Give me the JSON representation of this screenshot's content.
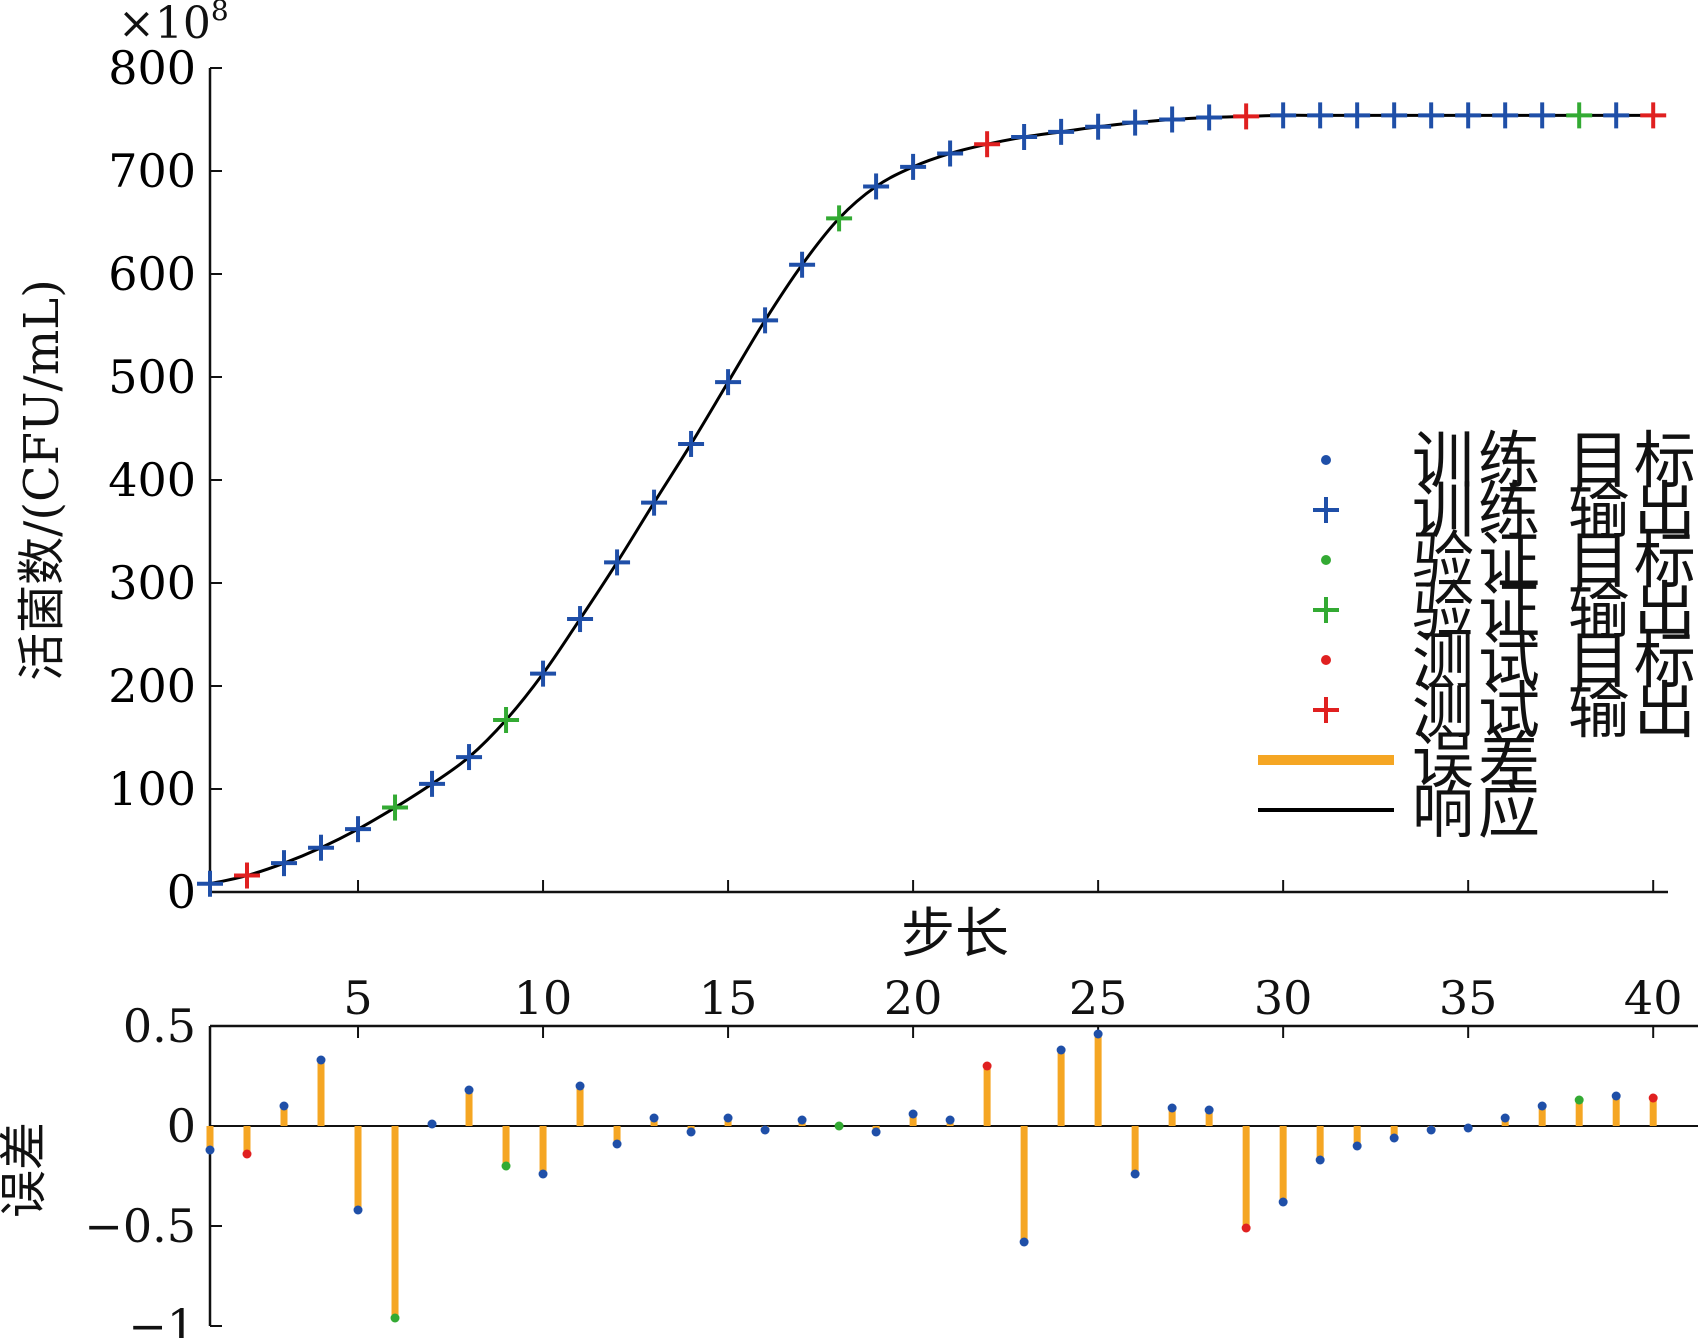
{
  "chart_data": [
    {
      "type": "line",
      "multiplier_label": "×10",
      "multiplier_exponent": "8",
      "ylabel": "活菌数/(CFU/mL)",
      "xlabel": "步长",
      "xlim": [
        1,
        40.4
      ],
      "ylim": [
        0,
        800
      ],
      "yticks": [
        0,
        100,
        200,
        300,
        400,
        500,
        600,
        700,
        800
      ],
      "xticks_minor": [
        5,
        10,
        15,
        20,
        25,
        30,
        35,
        40
      ],
      "grid": false,
      "legend_position": "right",
      "legend": [
        {
          "label": "训练 目标",
          "marker": "dot",
          "color": "#1f4fa8"
        },
        {
          "label": "训练 输出",
          "marker": "plus",
          "color": "#1f4fa8"
        },
        {
          "label": "验证 目标",
          "marker": "dot",
          "color": "#33aa33"
        },
        {
          "label": "验证 输出",
          "marker": "plus",
          "color": "#33aa33"
        },
        {
          "label": "测试 目标",
          "marker": "dot",
          "color": "#e02020"
        },
        {
          "label": "测试 输出",
          "marker": "plus",
          "color": "#e02020"
        },
        {
          "label": "误差",
          "marker": "line",
          "color": "#f5a623"
        },
        {
          "label": "响应",
          "marker": "line",
          "color": "#000000"
        }
      ],
      "colors": {
        "train": "#1f4fa8",
        "validation": "#33aa33",
        "test": "#e02020",
        "error": "#f5a623",
        "response": "#000000"
      },
      "x": [
        1,
        2,
        3,
        4,
        5,
        6,
        7,
        8,
        9,
        10,
        11,
        12,
        13,
        14,
        15,
        16,
        17,
        18,
        19,
        20,
        21,
        22,
        23,
        24,
        25,
        26,
        27,
        28,
        29,
        30,
        31,
        32,
        33,
        34,
        35,
        36,
        37,
        38,
        39,
        40
      ],
      "y": [
        8,
        16,
        28,
        43,
        61,
        82,
        105,
        131,
        167,
        212,
        265,
        320,
        378,
        435,
        495,
        555,
        609,
        654,
        685,
        704,
        717,
        726,
        733,
        738,
        743,
        747,
        750,
        752,
        753,
        754,
        754,
        754,
        754,
        754,
        754,
        754,
        754,
        754,
        754,
        754
      ],
      "set": [
        "train",
        "test",
        "train",
        "train",
        "train",
        "val",
        "train",
        "train",
        "val",
        "train",
        "train",
        "train",
        "train",
        "train",
        "train",
        "train",
        "train",
        "val",
        "train",
        "train",
        "train",
        "test",
        "train",
        "train",
        "train",
        "train",
        "train",
        "train",
        "test",
        "train",
        "train",
        "train",
        "train",
        "train",
        "train",
        "train",
        "train",
        "val",
        "train",
        "test"
      ]
    },
    {
      "type": "bar",
      "ylabel": "误差",
      "ylim": [
        -1,
        0.5
      ],
      "yticks": [
        -1,
        -0.5,
        0,
        0.5
      ],
      "ytick_labels": [
        "−1",
        "−0.5",
        "0",
        "0.5"
      ],
      "xticks": [
        5,
        10,
        15,
        20,
        25,
        30,
        35,
        40
      ],
      "x": [
        1,
        2,
        3,
        4,
        5,
        6,
        7,
        8,
        9,
        10,
        11,
        12,
        13,
        14,
        15,
        16,
        17,
        18,
        19,
        20,
        21,
        22,
        23,
        24,
        25,
        26,
        27,
        28,
        29,
        30,
        31,
        32,
        33,
        34,
        35,
        36,
        37,
        38,
        39,
        40
      ],
      "values": [
        -0.12,
        -0.14,
        0.1,
        0.33,
        -0.42,
        -0.96,
        0.01,
        0.18,
        -0.2,
        -0.24,
        0.2,
        -0.09,
        0.04,
        -0.03,
        0.04,
        -0.02,
        0.03,
        0.0,
        -0.03,
        0.06,
        0.03,
        0.3,
        -0.58,
        0.38,
        0.46,
        -0.24,
        0.09,
        0.08,
        -0.51,
        -0.38,
        -0.17,
        -0.1,
        -0.06,
        -0.02,
        -0.01,
        0.04,
        0.1,
        0.13,
        0.15,
        0.14
      ]
    }
  ]
}
